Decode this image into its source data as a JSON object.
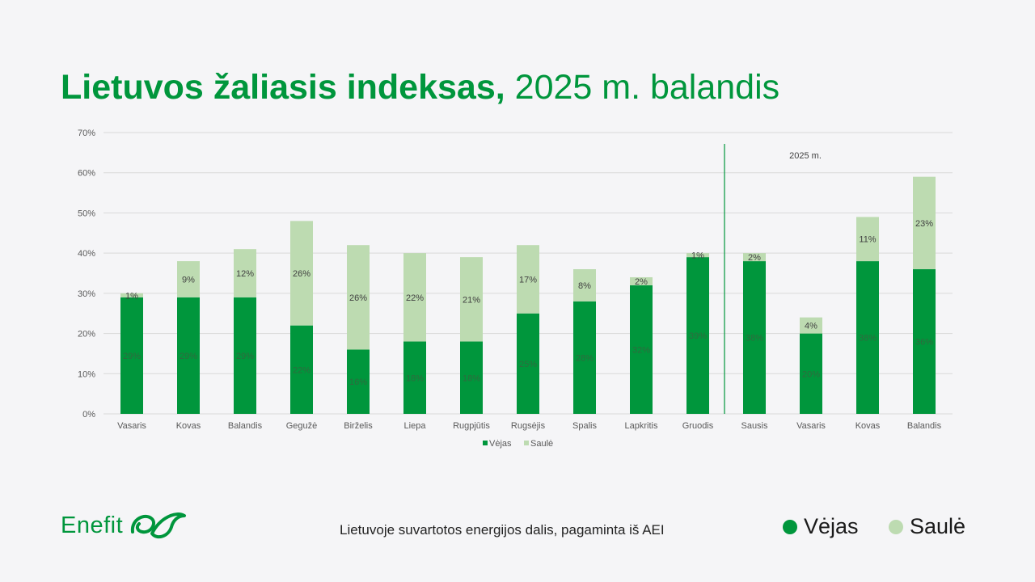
{
  "title": {
    "bold": "Lietuvos žaliasis indeksas,",
    "rest": " 2025 m. balandis"
  },
  "footer": {
    "note": "Lietuvoje suvartotos energijos dalis, pagaminta iš AEI"
  },
  "legend": {
    "wind": "Vėjas",
    "solar": "Saulė"
  },
  "brand": {
    "name": "Enefit"
  },
  "colors": {
    "wind": "#00963c",
    "solar": "#bddbb1",
    "accent": "#00963c"
  },
  "chart_data": {
    "type": "bar",
    "stacked": true,
    "categories": [
      "Vasaris",
      "Kovas",
      "Balandis",
      "Gegužė",
      "Birželis",
      "Liepa",
      "Rugpjūtis",
      "Rugsėjis",
      "Spalis",
      "Lapkritis",
      "Gruodis",
      "Sausis",
      "Vasaris",
      "Kovas",
      "Balandis"
    ],
    "series": [
      {
        "name": "Vėjas",
        "values": [
          29,
          29,
          29,
          22,
          16,
          18,
          18,
          25,
          28,
          32,
          39,
          38,
          20,
          38,
          36
        ]
      },
      {
        "name": "Saulė",
        "values": [
          1,
          9,
          12,
          26,
          26,
          22,
          21,
          17,
          8,
          2,
          1,
          2,
          4,
          11,
          23
        ]
      }
    ],
    "data_labels": {
      "Vėjas": [
        "29%",
        "29%",
        "29%",
        "22%",
        "16%",
        "18%",
        "18%",
        "25%",
        "28%",
        "32%",
        "39%",
        "38%",
        "20%",
        "38%",
        "36%"
      ],
      "Saulė": [
        "1%",
        "9%",
        "12%",
        "26%",
        "26%",
        "22%",
        "21%",
        "17%",
        "8%",
        "2%",
        "1%",
        "2%",
        "4%",
        "11%",
        "23%"
      ]
    },
    "ylim": [
      0,
      70
    ],
    "yticks": [
      0,
      10,
      20,
      30,
      40,
      50,
      60,
      70
    ],
    "ytick_labels": [
      "0%",
      "10%",
      "20%",
      "30%",
      "40%",
      "50%",
      "60%",
      "70%"
    ],
    "grid": true,
    "legend_position": "bottom",
    "annotation": {
      "text": "2025 m.",
      "after_category_index": 10
    }
  }
}
